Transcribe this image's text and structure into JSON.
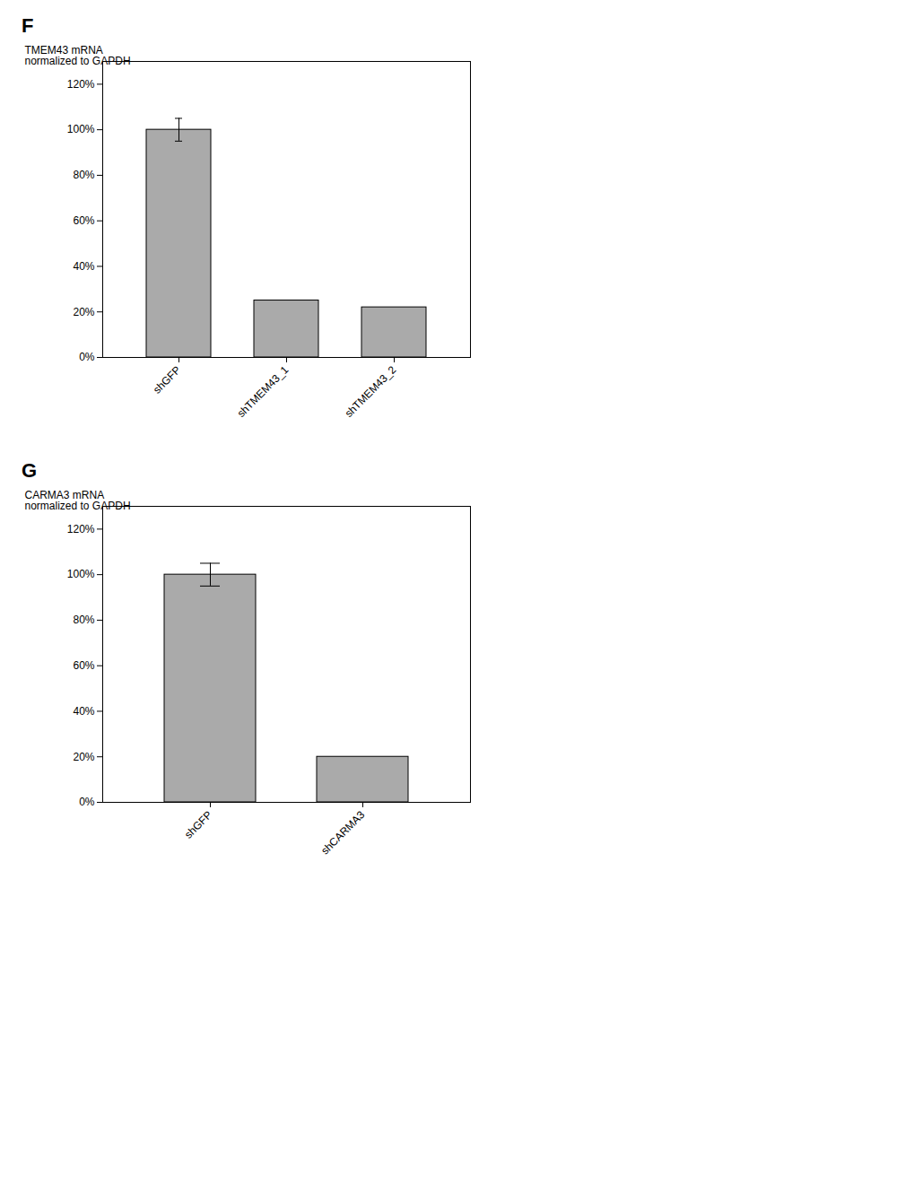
{
  "chart_data": [
    {
      "type": "bar",
      "title": "F",
      "ylabel": "TMEM43 mRNA\nnormalized to GAPDH",
      "categories": [
        "shGFP",
        "shTMEM43_1",
        "shTMEM43_2"
      ],
      "values": [
        100,
        25,
        22
      ],
      "errors": [
        5,
        null,
        null
      ],
      "color": "#aaaaaa",
      "ylim": [
        0,
        130
      ],
      "yticks": [
        {
          "value": 0,
          "label": "0%"
        },
        {
          "value": 20,
          "label": "20%"
        },
        {
          "value": 40,
          "label": "40%"
        },
        {
          "value": 60,
          "label": "60%"
        },
        {
          "value": 80,
          "label": "80%"
        },
        {
          "value": 100,
          "label": "100%"
        },
        {
          "value": 120,
          "label": "120%"
        }
      ],
      "grid": false
    },
    {
      "type": "bar",
      "title": "G",
      "ylabel": "CARMA3 mRNA\nnormalized to GAPDH",
      "categories": [
        "shGFP",
        "shCARMA3"
      ],
      "values": [
        100,
        20
      ],
      "errors": [
        5,
        null
      ],
      "color": "#aaaaaa",
      "ylim": [
        0,
        130
      ],
      "yticks": [
        {
          "value": 0,
          "label": "0%"
        },
        {
          "value": 20,
          "label": "20%"
        },
        {
          "value": 40,
          "label": "40%"
        },
        {
          "value": 60,
          "label": "60%"
        },
        {
          "value": 80,
          "label": "80%"
        },
        {
          "value": 100,
          "label": "100%"
        },
        {
          "value": 120,
          "label": "120%"
        }
      ],
      "grid": false
    }
  ]
}
